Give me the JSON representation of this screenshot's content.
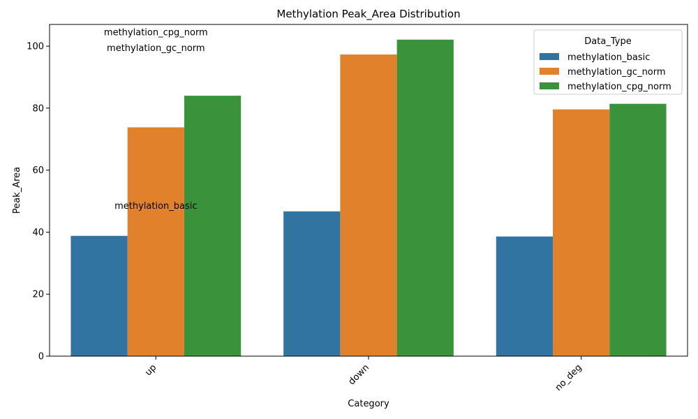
{
  "chart_data": {
    "type": "bar",
    "title": "Methylation Peak_Area Distribution",
    "xlabel": "Category",
    "ylabel": "Peak_Area",
    "categories": [
      "up",
      "down",
      "no_deg"
    ],
    "series": [
      {
        "name": "methylation_basic",
        "values": [
          38.8,
          46.7,
          38.6
        ],
        "color": "#3274a1"
      },
      {
        "name": "methylation_gc_norm",
        "values": [
          73.8,
          97.3,
          79.6
        ],
        "color": "#e1812c"
      },
      {
        "name": "methylation_cpg_norm",
        "values": [
          84.0,
          102.1,
          81.4
        ],
        "color": "#3a923a"
      }
    ],
    "ylim": [
      0,
      107
    ],
    "yticks": [
      0,
      20,
      40,
      60,
      80,
      100
    ],
    "legend": {
      "title": "Data_Type",
      "position": "top-right"
    },
    "grid": false,
    "annotations": [
      {
        "text": "methylation_cpg_norm",
        "category": "up",
        "y": 104.5
      },
      {
        "text": "methylation_gc_norm",
        "category": "up",
        "y": 99.5
      },
      {
        "text": "methylation_basic",
        "category": "up",
        "y": 48.5
      }
    ]
  }
}
